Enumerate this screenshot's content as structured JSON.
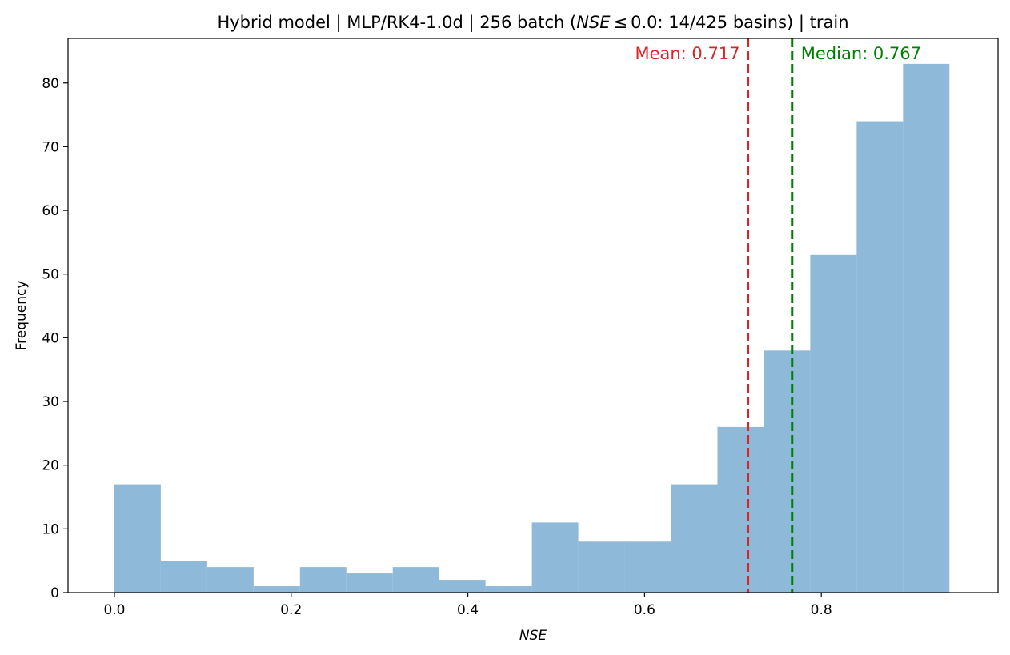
{
  "chart_data": {
    "type": "histogram",
    "title_parts": {
      "before": "Hybrid model | MLP/RK4-1.0d | 256 batch (",
      "math": "NSE",
      "rel": "≤",
      "after": "0.0: 14/425 basins) | train"
    },
    "xlabel": "NSE",
    "ylabel": "Frequency",
    "bins": [
      {
        "x0": 0.0,
        "x1": 0.0525,
        "count": 17
      },
      {
        "x0": 0.0525,
        "x1": 0.105,
        "count": 5
      },
      {
        "x0": 0.105,
        "x1": 0.1575,
        "count": 4
      },
      {
        "x0": 0.1575,
        "x1": 0.21,
        "count": 1
      },
      {
        "x0": 0.21,
        "x1": 0.2625,
        "count": 4
      },
      {
        "x0": 0.2625,
        "x1": 0.315,
        "count": 3
      },
      {
        "x0": 0.315,
        "x1": 0.3675,
        "count": 4
      },
      {
        "x0": 0.3675,
        "x1": 0.42,
        "count": 2
      },
      {
        "x0": 0.42,
        "x1": 0.4725,
        "count": 1
      },
      {
        "x0": 0.4725,
        "x1": 0.525,
        "count": 11
      },
      {
        "x0": 0.525,
        "x1": 0.5775,
        "count": 8
      },
      {
        "x0": 0.5775,
        "x1": 0.63,
        "count": 8
      },
      {
        "x0": 0.63,
        "x1": 0.6825,
        "count": 17
      },
      {
        "x0": 0.6825,
        "x1": 0.735,
        "count": 26
      },
      {
        "x0": 0.735,
        "x1": 0.7875,
        "count": 38
      },
      {
        "x0": 0.7875,
        "x1": 0.84,
        "count": 53
      },
      {
        "x0": 0.84,
        "x1": 0.8925,
        "count": 74
      },
      {
        "x0": 0.8925,
        "x1": 0.945,
        "count": 83
      }
    ],
    "xlim": [
      -0.0525,
      1.0
    ],
    "ylim": [
      0,
      87
    ],
    "xticks": [
      0.0,
      0.2,
      0.4,
      0.6,
      0.8
    ],
    "xtick_labels": [
      "0.0",
      "0.2",
      "0.4",
      "0.6",
      "0.8"
    ],
    "yticks": [
      0,
      10,
      20,
      30,
      40,
      50,
      60,
      70,
      80
    ],
    "ytick_labels": [
      "0",
      "10",
      "20",
      "30",
      "40",
      "50",
      "60",
      "70",
      "80"
    ],
    "bar_color": "#8fb9d8",
    "mean": {
      "value": 0.717,
      "label": "Mean: 0.717",
      "color": "#d62728"
    },
    "median": {
      "value": 0.767,
      "label": "Median: 0.767",
      "color": "#008000"
    }
  }
}
